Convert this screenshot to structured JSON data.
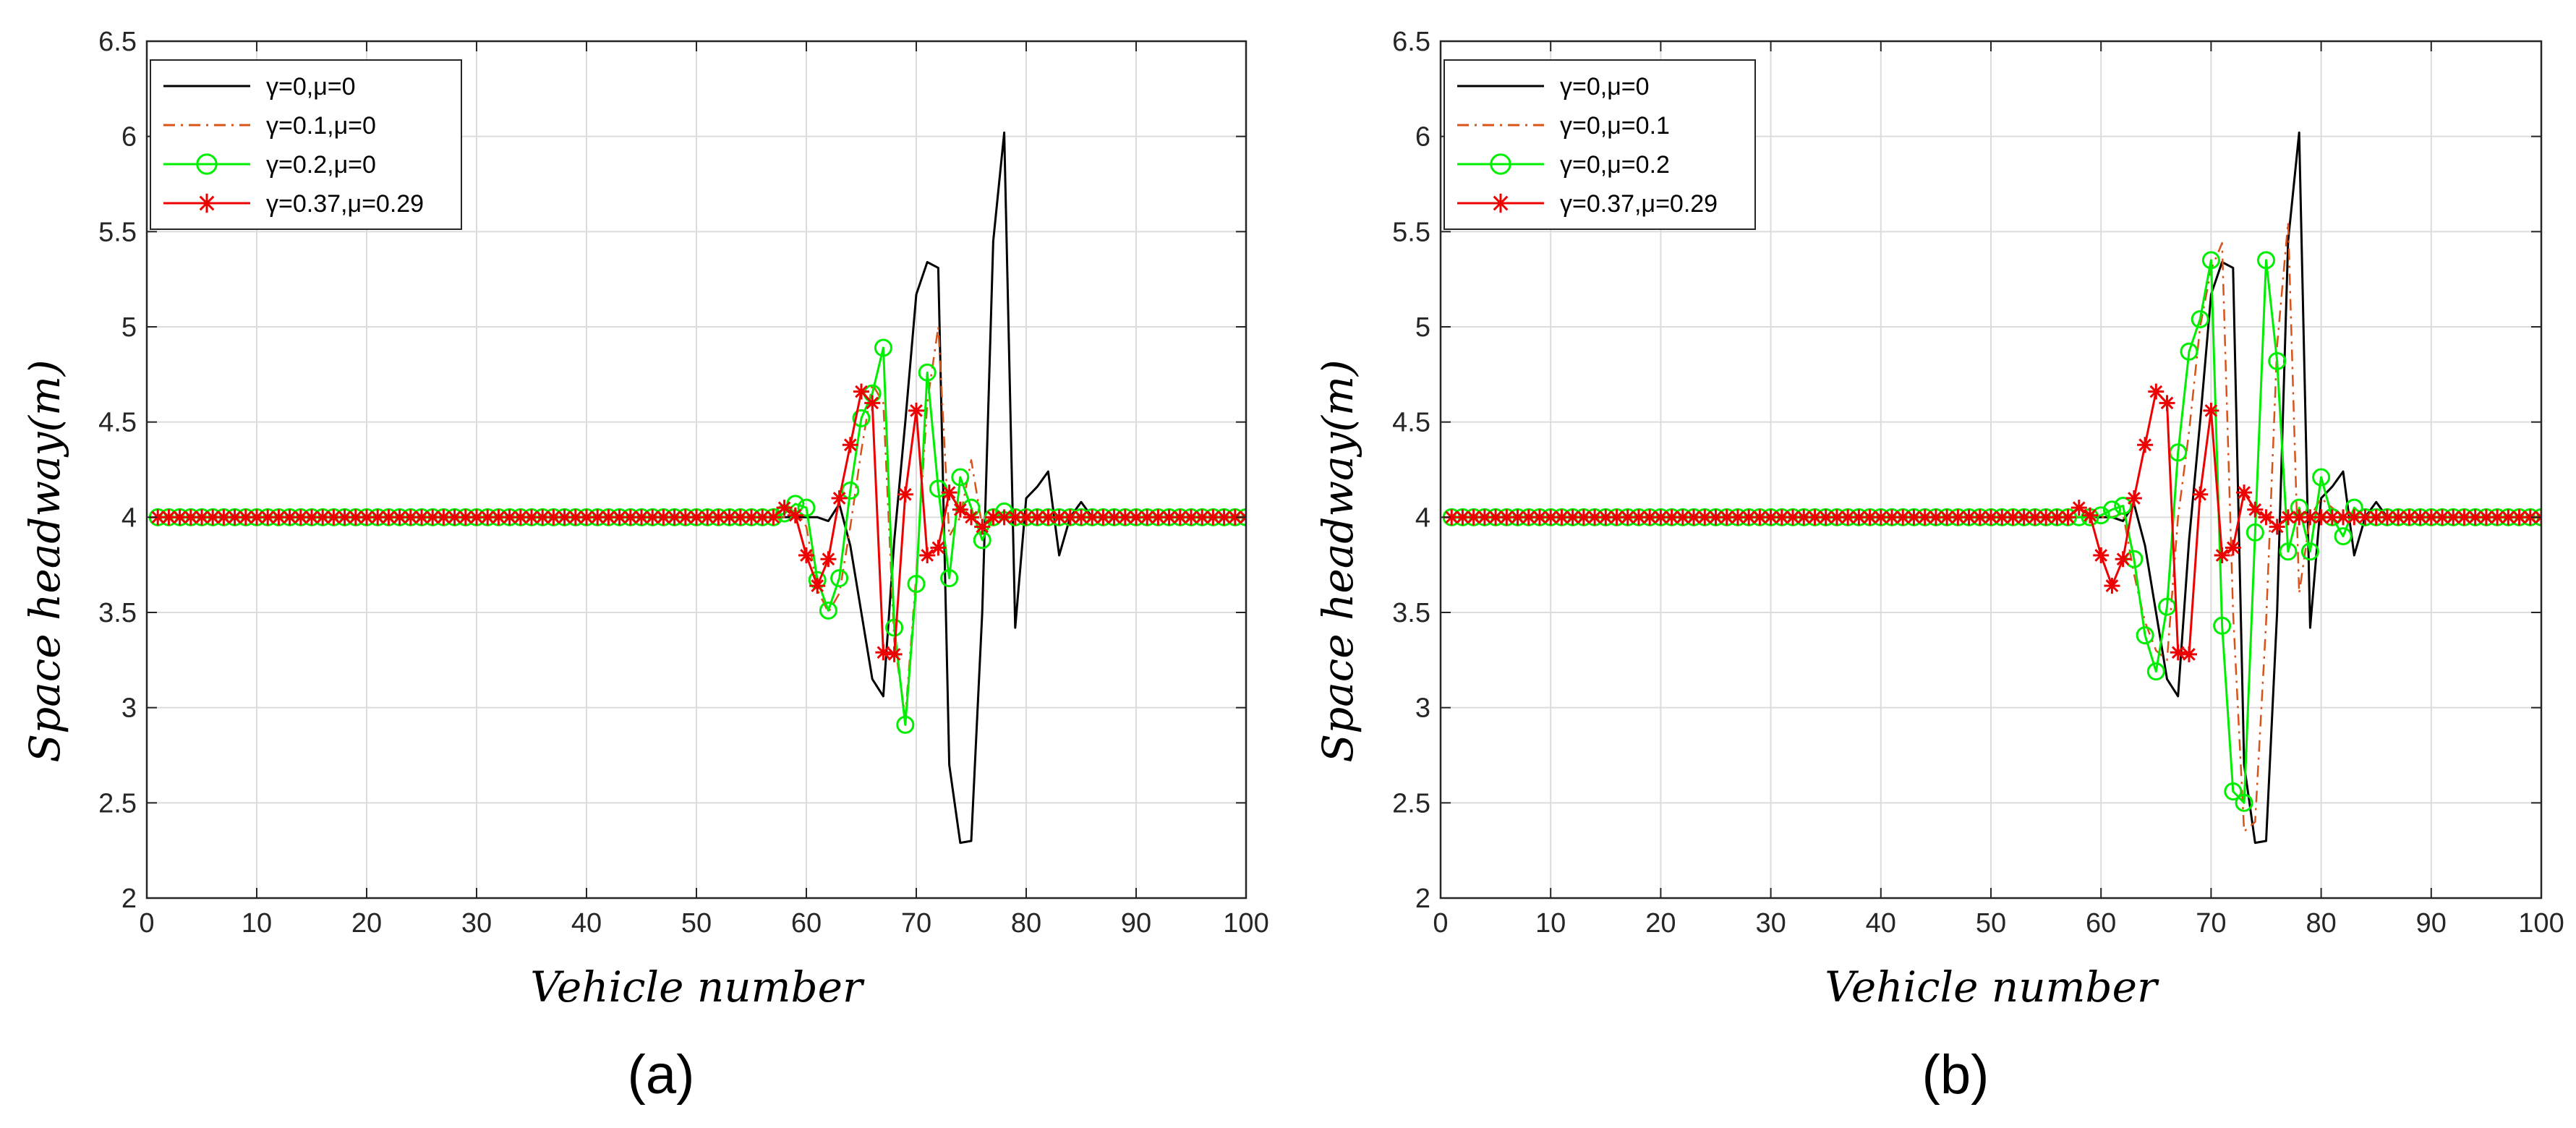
{
  "chart_data": [
    {
      "type": "line",
      "panel_label": "(a)",
      "xlabel": "Vehicle number",
      "ylabel": "Space headway(m)",
      "xlim": [
        0,
        100
      ],
      "ylim": [
        2,
        6.5
      ],
      "xticks": [
        "0",
        "10",
        "20",
        "30",
        "40",
        "50",
        "60",
        "70",
        "80",
        "90",
        "100"
      ],
      "yticks": [
        "2",
        "2.5",
        "3",
        "3.5",
        "4",
        "4.5",
        "5",
        "5.5",
        "6",
        "6.5"
      ],
      "grid": true,
      "legend_location": "top-left",
      "series": [
        {
          "name": "γ=0,μ=0",
          "style": "solid",
          "marker": "none",
          "color": "#000000",
          "points": [
            [
              1,
              4
            ],
            [
              57,
              4
            ],
            [
              58,
              4
            ],
            [
              59,
              4
            ],
            [
              60,
              4
            ],
            [
              61,
              4
            ],
            [
              62,
              3.98
            ],
            [
              63,
              4.07
            ],
            [
              64,
              3.85
            ],
            [
              65,
              3.5
            ],
            [
              66,
              3.15
            ],
            [
              67,
              3.06
            ],
            [
              68,
              3.88
            ],
            [
              69,
              4.5
            ],
            [
              70,
              5.17
            ],
            [
              71,
              5.34
            ],
            [
              72,
              5.31
            ],
            [
              73,
              2.7
            ],
            [
              74,
              2.29
            ],
            [
              75,
              2.3
            ],
            [
              76,
              3.5
            ],
            [
              77,
              5.45
            ],
            [
              78,
              6.02
            ],
            [
              79,
              3.42
            ],
            [
              80,
              4.1
            ],
            [
              81,
              4.16
            ],
            [
              82,
              4.24
            ],
            [
              83,
              3.8
            ],
            [
              84,
              4
            ],
            [
              85,
              4.08
            ],
            [
              86,
              4
            ],
            [
              100,
              4
            ]
          ]
        },
        {
          "name": "γ=0.1,μ=0",
          "style": "dashdot",
          "marker": "none",
          "color": "#d95319",
          "points": [
            [
              1,
              4
            ],
            [
              57,
              4
            ],
            [
              58,
              4
            ],
            [
              59,
              4.04
            ],
            [
              60,
              3.95
            ],
            [
              61,
              3.62
            ],
            [
              62,
              3.5
            ],
            [
              63,
              3.6
            ],
            [
              64,
              3.95
            ],
            [
              65,
              4.35
            ],
            [
              66,
              4.7
            ],
            [
              67,
              4.6
            ],
            [
              68,
              3.35
            ],
            [
              69,
              2.95
            ],
            [
              70,
              3.7
            ],
            [
              71,
              4.6
            ],
            [
              72,
              5.0
            ],
            [
              73,
              3.9
            ],
            [
              74,
              4.0
            ],
            [
              75,
              4.3
            ],
            [
              76,
              3.95
            ],
            [
              77,
              4.02
            ],
            [
              78,
              4
            ],
            [
              100,
              4
            ]
          ]
        },
        {
          "name": "γ=0.2,μ=0",
          "style": "solid",
          "marker": "circle",
          "color": "#00ee00",
          "points": [
            [
              1,
              4
            ],
            [
              57,
              4
            ],
            [
              58,
              4.02
            ],
            [
              59,
              4.07
            ],
            [
              60,
              4.05
            ],
            [
              61,
              3.67
            ],
            [
              62,
              3.51
            ],
            [
              63,
              3.68
            ],
            [
              64,
              4.14
            ],
            [
              65,
              4.52
            ],
            [
              66,
              4.65
            ],
            [
              67,
              4.89
            ],
            [
              68,
              3.42
            ],
            [
              69,
              2.91
            ],
            [
              70,
              3.65
            ],
            [
              71,
              4.76
            ],
            [
              72,
              4.15
            ],
            [
              73,
              3.68
            ],
            [
              74,
              4.21
            ],
            [
              75,
              4.05
            ],
            [
              76,
              3.88
            ],
            [
              77,
              4.0
            ],
            [
              78,
              4.03
            ],
            [
              79,
              4
            ],
            [
              100,
              4
            ]
          ]
        },
        {
          "name": "γ=0.37,μ=0.29",
          "style": "solid",
          "marker": "star",
          "color": "#ee0000",
          "points": [
            [
              1,
              4
            ],
            [
              57,
              4
            ],
            [
              58,
              4.05
            ],
            [
              59,
              4.01
            ],
            [
              60,
              3.8
            ],
            [
              61,
              3.64
            ],
            [
              62,
              3.78
            ],
            [
              63,
              4.1
            ],
            [
              64,
              4.38
            ],
            [
              65,
              4.66
            ],
            [
              66,
              4.6
            ],
            [
              67,
              3.29
            ],
            [
              68,
              3.28
            ],
            [
              69,
              4.12
            ],
            [
              70,
              4.56
            ],
            [
              71,
              3.8
            ],
            [
              72,
              3.84
            ],
            [
              73,
              4.13
            ],
            [
              74,
              4.04
            ],
            [
              75,
              4.0
            ],
            [
              76,
              3.95
            ],
            [
              77,
              4.0
            ],
            [
              100,
              4
            ]
          ]
        }
      ]
    },
    {
      "type": "line",
      "panel_label": "(b)",
      "xlabel": "Vehicle number",
      "ylabel": "Space headway(m)",
      "xlim": [
        0,
        100
      ],
      "ylim": [
        2,
        6.5
      ],
      "xticks": [
        "0",
        "10",
        "20",
        "30",
        "40",
        "50",
        "60",
        "70",
        "80",
        "90",
        "100"
      ],
      "yticks": [
        "2",
        "2.5",
        "3",
        "3.5",
        "4",
        "4.5",
        "5",
        "5.5",
        "6",
        "6.5"
      ],
      "grid": true,
      "legend_location": "top-left",
      "series": [
        {
          "name": "γ=0,μ=0",
          "style": "solid",
          "marker": "none",
          "color": "#000000",
          "points": [
            [
              1,
              4
            ],
            [
              57,
              4
            ],
            [
              58,
              4
            ],
            [
              59,
              4
            ],
            [
              60,
              4
            ],
            [
              61,
              4
            ],
            [
              62,
              3.98
            ],
            [
              63,
              4.07
            ],
            [
              64,
              3.85
            ],
            [
              65,
              3.5
            ],
            [
              66,
              3.15
            ],
            [
              67,
              3.06
            ],
            [
              68,
              3.88
            ],
            [
              69,
              4.5
            ],
            [
              70,
              5.17
            ],
            [
              71,
              5.34
            ],
            [
              72,
              5.31
            ],
            [
              73,
              2.7
            ],
            [
              74,
              2.29
            ],
            [
              75,
              2.3
            ],
            [
              76,
              3.5
            ],
            [
              77,
              5.45
            ],
            [
              78,
              6.02
            ],
            [
              79,
              3.42
            ],
            [
              80,
              4.1
            ],
            [
              81,
              4.16
            ],
            [
              82,
              4.24
            ],
            [
              83,
              3.8
            ],
            [
              84,
              4
            ],
            [
              85,
              4.08
            ],
            [
              86,
              4
            ],
            [
              100,
              4
            ]
          ]
        },
        {
          "name": "γ=0,μ=0.1",
          "style": "dashdot",
          "marker": "none",
          "color": "#d95319",
          "points": [
            [
              1,
              4
            ],
            [
              60,
              4
            ],
            [
              61,
              4.0
            ],
            [
              62,
              4.02
            ],
            [
              63,
              3.7
            ],
            [
              64,
              3.45
            ],
            [
              65,
              3.3
            ],
            [
              66,
              3.25
            ],
            [
              67,
              4.0
            ],
            [
              68,
              4.45
            ],
            [
              69,
              5.0
            ],
            [
              70,
              5.3
            ],
            [
              71,
              5.44
            ],
            [
              72,
              3.5
            ],
            [
              73,
              2.35
            ],
            [
              74,
              2.4
            ],
            [
              75,
              3.45
            ],
            [
              76,
              4.9
            ],
            [
              77,
              5.55
            ],
            [
              78,
              3.6
            ],
            [
              79,
              4.0
            ],
            [
              80,
              4.1
            ],
            [
              81,
              4.05
            ],
            [
              82,
              4
            ],
            [
              100,
              4
            ]
          ]
        },
        {
          "name": "γ=0,μ=0.2",
          "style": "solid",
          "marker": "circle",
          "color": "#00ee00",
          "points": [
            [
              1,
              4
            ],
            [
              59,
              4
            ],
            [
              60,
              4.01
            ],
            [
              61,
              4.04
            ],
            [
              62,
              4.06
            ],
            [
              63,
              3.78
            ],
            [
              64,
              3.38
            ],
            [
              65,
              3.19
            ],
            [
              66,
              3.53
            ],
            [
              67,
              4.34
            ],
            [
              68,
              4.87
            ],
            [
              69,
              5.04
            ],
            [
              70,
              5.35
            ],
            [
              71,
              3.43
            ],
            [
              72,
              2.56
            ],
            [
              73,
              2.5
            ],
            [
              74,
              3.92
            ],
            [
              75,
              5.35
            ],
            [
              76,
              4.82
            ],
            [
              77,
              3.82
            ],
            [
              78,
              4.05
            ],
            [
              79,
              3.82
            ],
            [
              80,
              4.21
            ],
            [
              81,
              4.0
            ],
            [
              82,
              3.9
            ],
            [
              83,
              4.05
            ],
            [
              84,
              4.0
            ],
            [
              85,
              4.0
            ],
            [
              100,
              4
            ]
          ]
        },
        {
          "name": "γ=0.37,μ=0.29",
          "style": "solid",
          "marker": "star",
          "color": "#ee0000",
          "points": [
            [
              1,
              4
            ],
            [
              57,
              4
            ],
            [
              58,
              4.05
            ],
            [
              59,
              4.01
            ],
            [
              60,
              3.8
            ],
            [
              61,
              3.64
            ],
            [
              62,
              3.78
            ],
            [
              63,
              4.1
            ],
            [
              64,
              4.38
            ],
            [
              65,
              4.66
            ],
            [
              66,
              4.6
            ],
            [
              67,
              3.29
            ],
            [
              68,
              3.28
            ],
            [
              69,
              4.12
            ],
            [
              70,
              4.56
            ],
            [
              71,
              3.8
            ],
            [
              72,
              3.84
            ],
            [
              73,
              4.13
            ],
            [
              74,
              4.04
            ],
            [
              75,
              4.0
            ],
            [
              76,
              3.95
            ],
            [
              77,
              4.0
            ],
            [
              100,
              4
            ]
          ]
        }
      ]
    }
  ]
}
